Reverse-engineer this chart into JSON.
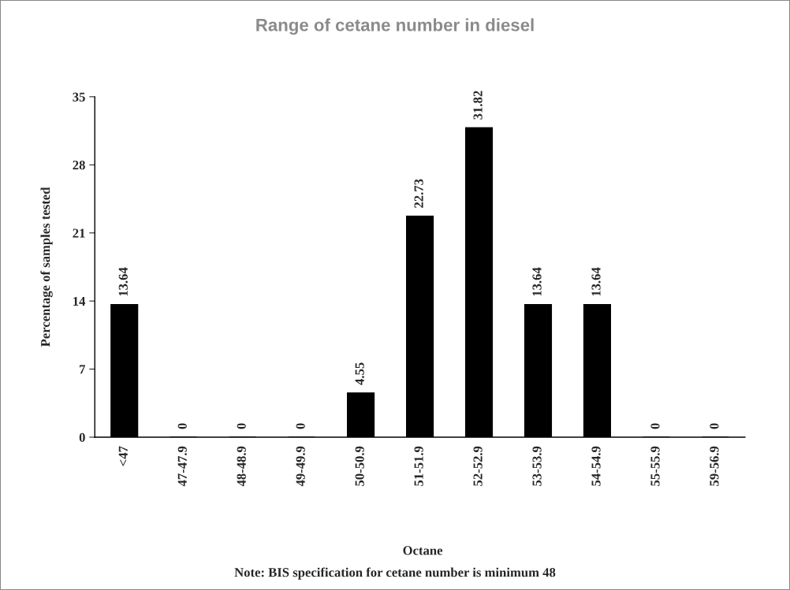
{
  "chart_data": {
    "type": "bar",
    "title": "Range of cetane number in diesel",
    "xlabel": "Octane",
    "ylabel": "Percentage of samples tested",
    "categories": [
      "<47",
      "47-47.9",
      "48-48.9",
      "49-49.9",
      "50-50.9",
      "51-51.9",
      "52-52.9",
      "53-53.9",
      "54-54.9",
      "55-55.9",
      "59-56.9"
    ],
    "values": [
      13.64,
      0,
      0,
      0,
      4.55,
      22.73,
      31.82,
      13.64,
      13.64,
      0,
      0
    ],
    "color": "#000000",
    "ylim": [
      0,
      35
    ],
    "yticks": [
      0,
      7,
      14,
      21,
      28,
      35
    ],
    "grid": false,
    "legend": false,
    "data_labels": true,
    "annotations": [
      "Note: BIS specification for cetane number is minimum 48"
    ]
  }
}
